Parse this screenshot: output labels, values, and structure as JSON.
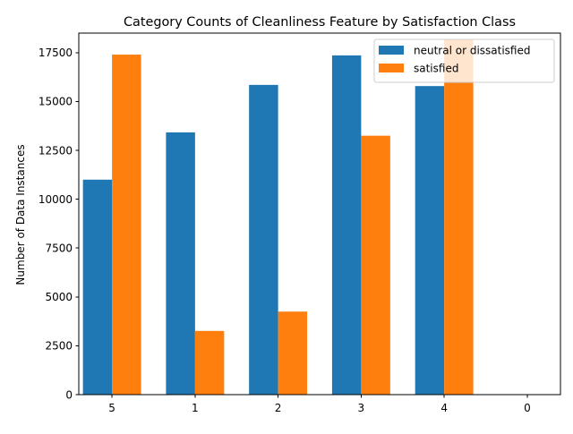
{
  "chart_data": {
    "type": "bar",
    "title": "Category Counts of Cleanliness Feature by Satisfaction Class",
    "xlabel": "",
    "ylabel": "Number of Data Instances",
    "categories": [
      "5",
      "1",
      "2",
      "3",
      "4",
      "0"
    ],
    "series": [
      {
        "name": "neutral or dissatisfied",
        "color": "#1f77b4",
        "values": [
          11000,
          13420,
          15850,
          17360,
          15790,
          0
        ]
      },
      {
        "name": "satisfied",
        "color": "#ff7f0e",
        "values": [
          17400,
          3260,
          4250,
          13250,
          18200,
          0
        ]
      }
    ],
    "ylim": [
      0,
      18500
    ],
    "yticks": [
      0,
      2500,
      5000,
      7500,
      10000,
      12500,
      15000,
      17500
    ],
    "grid": false,
    "legend_position": "top-right"
  }
}
